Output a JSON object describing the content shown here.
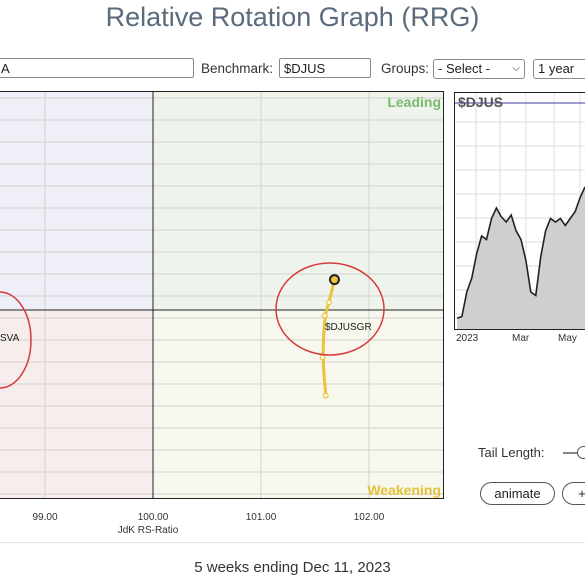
{
  "header": {
    "title": "Relative Rotation Graph (RRG)"
  },
  "controls": {
    "symbols_value": "A",
    "benchmark_label": "Benchmark:",
    "benchmark_value": "$DJUS",
    "groups_label": "Groups:",
    "groups_value": "- Select -",
    "period_value": "1 year"
  },
  "rrg": {
    "quadrants": {
      "leading": "Leading",
      "weakening": "Weakening"
    },
    "colors": {
      "leading_bg": "#eef4ec",
      "weakening_bg": "#f7f7ed",
      "lagging_bg": "#f8eded",
      "improving_bg": "#eeeff7",
      "leading_text": "#7ab96e",
      "weakening_text": "#e3c23a",
      "tail": "#e8c53a",
      "highlight": "#d63a3a"
    },
    "x_ticks": [
      "99.00",
      "100.00",
      "101.00",
      "102.00"
    ],
    "xlabel": "JdK RS-Ratio",
    "labels": {
      "sector_label": "$DJUSGR",
      "left_label": "SVA"
    }
  },
  "chart_data": {
    "type": "scatter",
    "xlabel": "JdK RS-Ratio",
    "ylabel": "",
    "x_ticks": [
      99.0,
      100.0,
      101.0,
      102.0
    ],
    "xlim": [
      98.6,
      102.75
    ],
    "series": [
      {
        "name": "$DJUSGR",
        "x": [
          101.6,
          101.57,
          101.59,
          101.63,
          101.68
        ],
        "y": [
          99.55,
          99.75,
          99.97,
          100.04,
          100.16
        ]
      }
    ]
  },
  "mini_chart": {
    "title": "$DJUS",
    "x_labels": [
      "2023",
      "Mar",
      "May"
    ],
    "values": [
      0.05,
      0.06,
      0.2,
      0.28,
      0.42,
      0.52,
      0.5,
      0.62,
      0.68,
      0.63,
      0.6,
      0.64,
      0.55,
      0.5,
      0.38,
      0.2,
      0.18,
      0.4,
      0.55,
      0.62,
      0.6,
      0.62,
      0.58,
      0.62,
      0.66,
      0.74,
      0.8
    ]
  },
  "tail": {
    "label": "Tail Length:"
  },
  "buttons": {
    "animate": "animate",
    "plus": "+"
  },
  "footer": {
    "text": "5 weeks ending Dec 11, 2023"
  }
}
